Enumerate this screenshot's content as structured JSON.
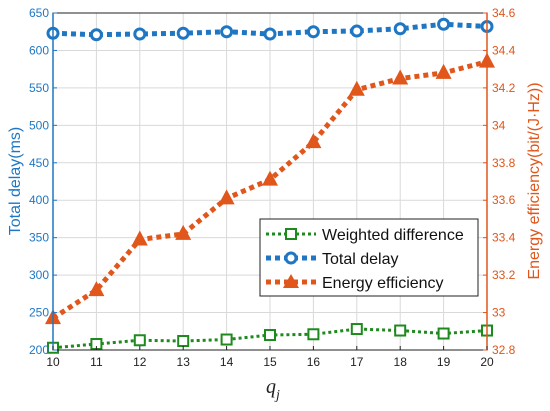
{
  "chart_data": {
    "type": "line",
    "x": [
      10,
      11,
      12,
      13,
      14,
      15,
      16,
      17,
      18,
      19,
      20
    ],
    "xlabel": "q",
    "xlabel_sub": "j",
    "x_tick_labels": [
      "10",
      "11",
      "12",
      "13",
      "14",
      "15",
      "16",
      "17",
      "18",
      "19",
      "20"
    ],
    "xlim": [
      10,
      20
    ],
    "ylabel_left": "Total delay(ms)",
    "ylim_left": [
      200,
      650
    ],
    "y_left_tick_labels": [
      "200",
      "250",
      "300",
      "350",
      "400",
      "450",
      "500",
      "550",
      "600",
      "650"
    ],
    "ylabel_right": "Energy efficiency(bit/(J·Hz))",
    "ylim_right": [
      32.8,
      34.6
    ],
    "y_right_tick_labels": [
      "32.8",
      "33",
      "33.2",
      "33.4",
      "33.6",
      "33.8",
      "34",
      "34.2",
      "34.4",
      "34.6"
    ],
    "grid": true,
    "legend_position": "lower-right",
    "series": [
      {
        "name": "Weighted difference",
        "axis": "left",
        "color": "#1e8a1e",
        "marker": "square",
        "values": [
          203,
          208,
          213,
          212,
          214,
          220,
          221,
          228,
          226,
          222,
          226
        ]
      },
      {
        "name": "Total delay",
        "axis": "left",
        "color": "#1f77c4",
        "marker": "circle",
        "values": [
          623,
          621,
          622,
          623,
          625,
          622,
          625,
          626,
          629,
          635,
          632
        ]
      },
      {
        "name": "Energy efficiency",
        "axis": "right",
        "color": "#e0561b",
        "marker": "triangle",
        "values": [
          32.97,
          33.12,
          33.39,
          33.42,
          33.61,
          33.71,
          33.91,
          34.19,
          34.25,
          34.28,
          34.34
        ]
      }
    ]
  }
}
